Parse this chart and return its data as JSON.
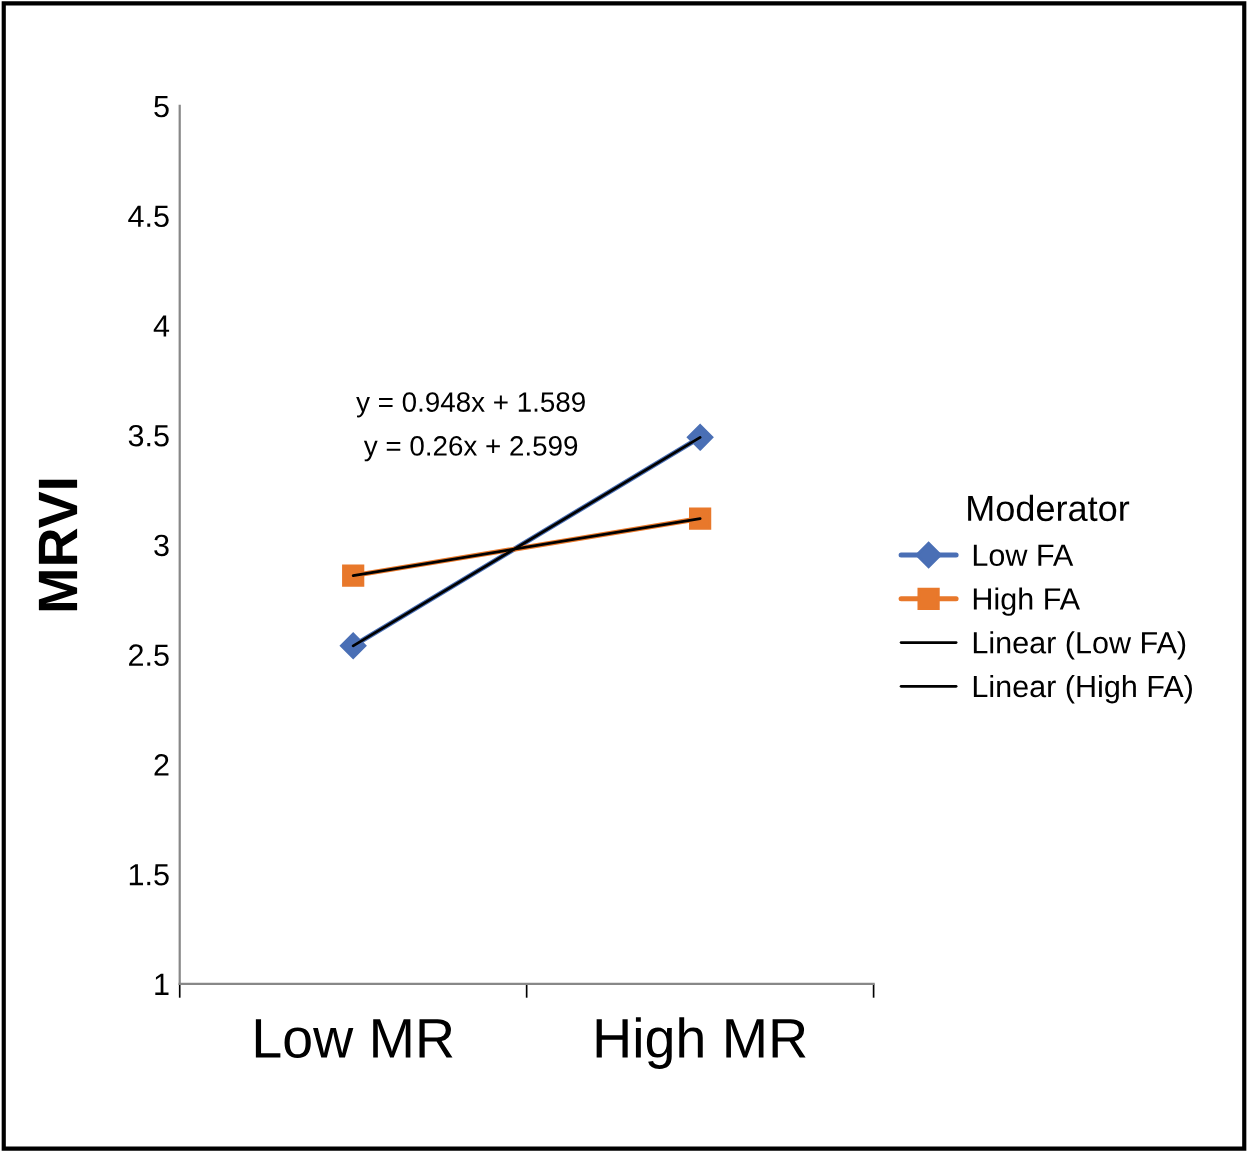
{
  "chart_data": {
    "type": "line",
    "ylabel": "MRVI",
    "legend_title": "Moderator",
    "categories": [
      "Low MR",
      "High MR"
    ],
    "series": [
      {
        "name": "Low FA",
        "color": "#4a6fb5",
        "values": [
          2.54,
          3.49
        ],
        "marker": "diamond"
      },
      {
        "name": "High FA",
        "color": "#e8782b",
        "values": [
          2.86,
          3.12
        ],
        "marker": "square"
      },
      {
        "name": "Linear (Low FA)",
        "color": "#000000",
        "values": [
          2.54,
          3.49
        ],
        "marker": "none"
      },
      {
        "name": "Linear (High FA)",
        "color": "#000000",
        "values": [
          2.86,
          3.12
        ],
        "marker": "none"
      }
    ],
    "annotations": [
      {
        "text": "y = 0.948x + 1.589"
      },
      {
        "text": "y = 0.26x + 2.599"
      }
    ],
    "ylim": [
      1,
      5
    ],
    "yticks": [
      1,
      1.5,
      2,
      2.5,
      3,
      3.5,
      4,
      4.5,
      5
    ],
    "grid": false,
    "legend": "right",
    "line_style": "solid"
  }
}
